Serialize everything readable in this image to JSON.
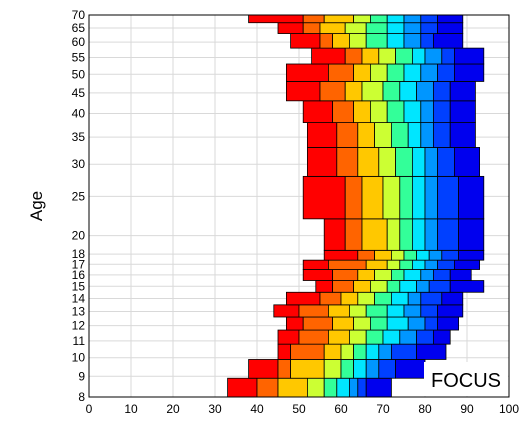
{
  "chart_data": {
    "type": "heatmap",
    "title": "",
    "xlabel": "",
    "ylabel": "Age",
    "xlim": [
      0,
      100
    ],
    "x_ticks": [
      0,
      10,
      20,
      30,
      40,
      50,
      60,
      70,
      80,
      90,
      100
    ],
    "y_ticks": [
      8,
      9,
      10,
      11,
      12,
      13,
      14,
      15,
      16,
      17,
      18,
      20,
      25,
      30,
      35,
      40,
      45,
      50,
      55,
      60,
      65,
      70
    ],
    "y_scale": "log",
    "grid": true,
    "annotation": "FOCUS",
    "color_scale": [
      "#ff0000",
      "#ff6400",
      "#ffc800",
      "#ccff33",
      "#33ff99",
      "#00e6ff",
      "#0096ff",
      "#0040ff",
      "#0000ee"
    ],
    "rows": [
      {
        "age_from": 8,
        "age_to": 8.9,
        "edges": [
          33,
          40,
          45,
          52,
          56,
          59,
          62,
          64,
          66,
          72
        ]
      },
      {
        "age_from": 8.9,
        "age_to": 9.9,
        "edges": [
          38,
          45,
          48,
          56,
          60,
          63,
          66,
          69,
          73,
          80
        ]
      },
      {
        "age_from": 9.9,
        "age_to": 10.8,
        "edges": [
          45,
          48,
          56,
          60,
          63,
          66,
          69,
          72,
          78,
          85
        ]
      },
      {
        "age_from": 10.8,
        "age_to": 11.7,
        "edges": [
          45,
          50,
          57,
          62,
          66,
          70,
          74,
          78,
          82,
          86
        ]
      },
      {
        "age_from": 11.7,
        "age_to": 12.6,
        "edges": [
          47,
          51,
          58,
          63,
          67,
          71,
          76,
          80,
          83,
          88
        ]
      },
      {
        "age_from": 12.6,
        "age_to": 13.5,
        "edges": [
          44,
          50,
          57,
          62,
          66,
          71,
          75,
          79,
          83,
          89
        ]
      },
      {
        "age_from": 13.5,
        "age_to": 14.5,
        "edges": [
          47,
          55,
          60,
          64,
          68,
          72,
          76,
          79,
          84,
          89
        ]
      },
      {
        "age_from": 14.5,
        "age_to": 15.5,
        "edges": [
          54,
          58,
          63,
          67,
          71,
          74,
          78,
          81,
          86,
          94
        ]
      },
      {
        "age_from": 15.5,
        "age_to": 16.5,
        "edges": [
          51,
          58,
          64,
          68,
          72,
          75,
          79,
          82,
          86,
          91
        ]
      },
      {
        "age_from": 16.5,
        "age_to": 17.4,
        "edges": [
          51,
          57,
          66,
          71,
          74,
          77,
          80,
          83,
          87,
          93
        ]
      },
      {
        "age_from": 17.4,
        "age_to": 18.4,
        "edges": [
          56,
          64,
          68,
          72,
          75,
          78,
          81,
          84,
          88,
          94
        ]
      },
      {
        "age_from": 18.4,
        "age_to": 22,
        "edges": [
          56,
          61,
          65,
          71,
          74,
          77,
          80,
          83,
          88,
          94
        ]
      },
      {
        "age_from": 22,
        "age_to": 28,
        "edges": [
          51,
          61,
          65,
          70,
          74,
          77,
          80,
          83,
          88,
          94
        ]
      },
      {
        "age_from": 28,
        "age_to": 33,
        "edges": [
          52,
          59,
          64,
          69,
          73,
          77,
          80,
          83,
          87,
          93
        ]
      },
      {
        "age_from": 33,
        "age_to": 38,
        "edges": [
          52,
          59,
          64,
          68,
          72,
          76,
          79,
          82,
          86,
          92
        ]
      },
      {
        "age_from": 38,
        "age_to": 43,
        "edges": [
          51,
          58,
          63,
          67,
          71,
          75,
          79,
          82,
          86,
          92
        ]
      },
      {
        "age_from": 43,
        "age_to": 48,
        "edges": [
          47,
          55,
          61,
          65,
          70,
          74,
          78,
          82,
          86,
          92
        ]
      },
      {
        "age_from": 48,
        "age_to": 53,
        "edges": [
          47,
          57,
          63,
          67,
          71,
          75,
          79,
          83,
          87,
          94
        ]
      },
      {
        "age_from": 53,
        "age_to": 58,
        "edges": [
          53,
          61,
          65,
          69,
          73,
          77,
          80,
          84,
          87,
          94
        ]
      },
      {
        "age_from": 58,
        "age_to": 63,
        "edges": [
          48,
          55,
          58,
          62,
          66,
          71,
          75,
          79,
          82,
          89
        ]
      },
      {
        "age_from": 63,
        "age_to": 67,
        "edges": [
          45,
          51,
          55,
          61,
          66,
          71,
          75,
          79,
          83,
          89
        ]
      },
      {
        "age_from": 67,
        "age_to": 70,
        "edges": [
          38,
          51,
          56,
          63,
          67,
          71,
          75,
          79,
          83,
          89
        ]
      }
    ]
  }
}
